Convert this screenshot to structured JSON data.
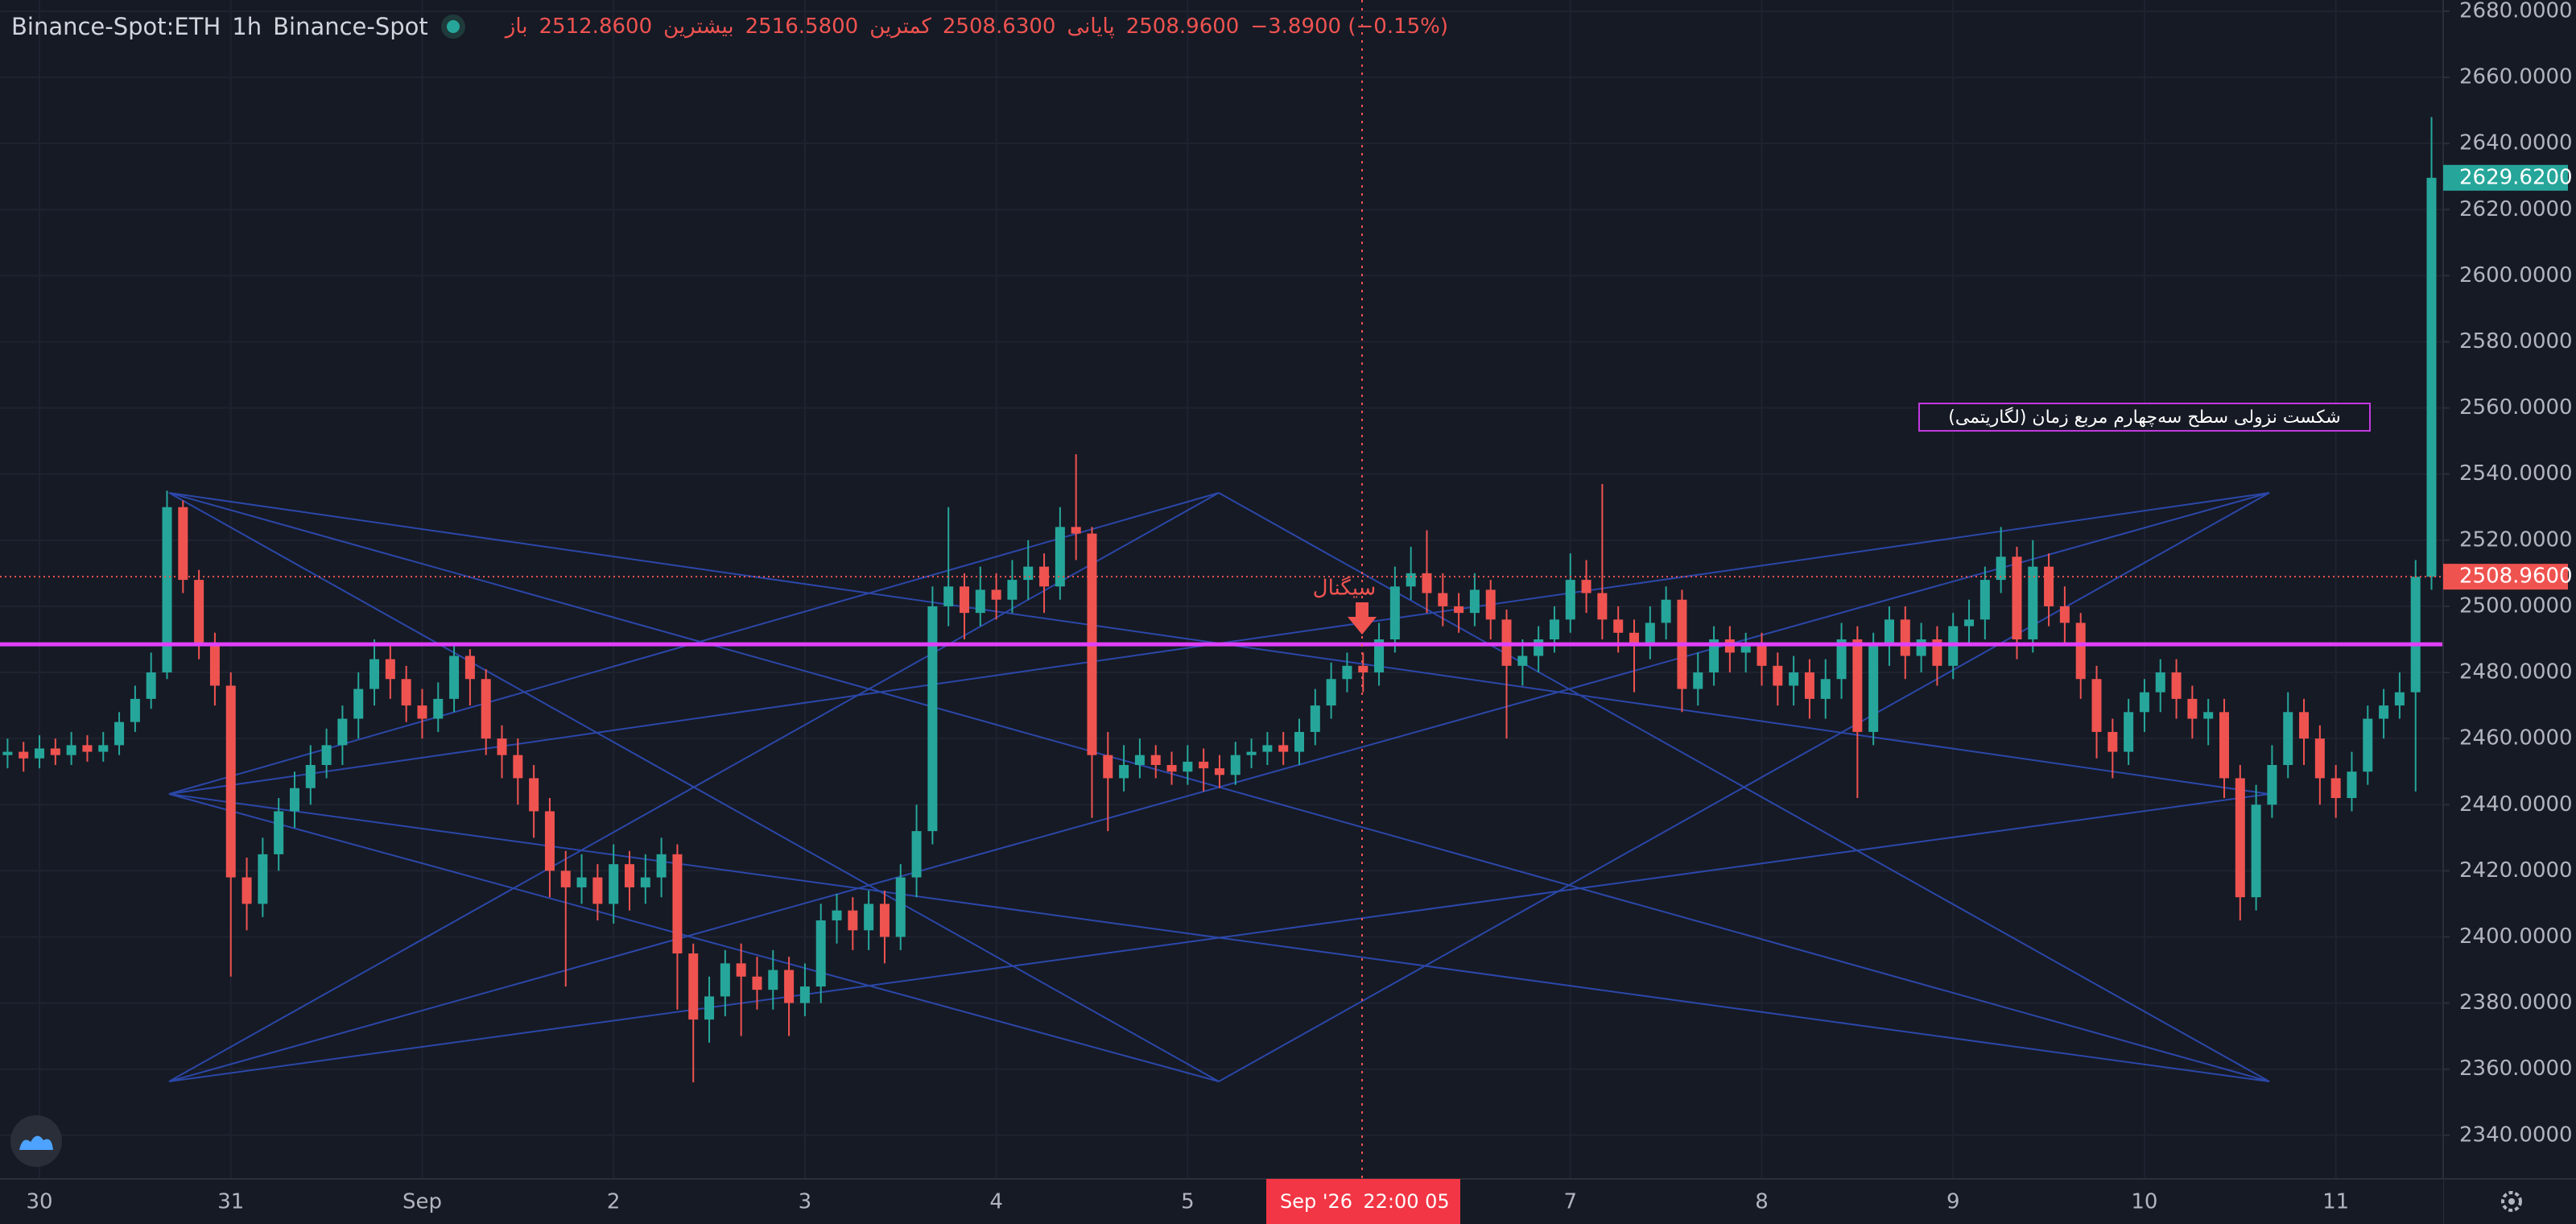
{
  "chart_data": {
    "type": "candlestick",
    "title": "Binance-Spot:ETH",
    "interval": "1h",
    "exchange": "Binance-Spot",
    "legend": [
      {
        "label": "باز",
        "value": "2512.8600"
      },
      {
        "label": "بیشترین",
        "value": "2516.5800"
      },
      {
        "label": "کمترین",
        "value": "2508.6300"
      },
      {
        "label": "پایانی",
        "value": "2508.9600"
      }
    ],
    "change": "−3.8900 (−0.15%)",
    "categories": [
      null,
      null,
      "30",
      null,
      null,
      null,
      null,
      null,
      null,
      null,
      null,
      null,
      null,
      null,
      "31",
      null,
      null,
      null,
      null,
      null,
      null,
      null,
      null,
      null,
      null,
      null,
      "Sep",
      null,
      null,
      null,
      null,
      null,
      null,
      null,
      null,
      null,
      null,
      null,
      "2",
      null,
      null,
      null,
      null,
      null,
      null,
      null,
      null,
      null,
      null,
      null,
      "3",
      null,
      null,
      null,
      null,
      null,
      null,
      null,
      null,
      null,
      null,
      null,
      "4",
      null,
      null,
      null,
      null,
      null,
      null,
      null,
      null,
      null,
      null,
      null,
      "5",
      null,
      null,
      null,
      null,
      null,
      null,
      null,
      null,
      null,
      null,
      null,
      null,
      null,
      null,
      null,
      null,
      null,
      null,
      null,
      null,
      null,
      null,
      null,
      "7",
      null,
      null,
      null,
      null,
      null,
      null,
      null,
      null,
      null,
      null,
      null,
      "8",
      null,
      null,
      null,
      null,
      null,
      null,
      null,
      null,
      null,
      null,
      null,
      "9",
      null,
      null,
      null,
      null,
      null,
      null,
      null,
      null,
      null,
      null,
      null,
      "10",
      null,
      null,
      null,
      null,
      null,
      null,
      null,
      null,
      null,
      null,
      null,
      "11",
      null,
      null,
      null,
      null,
      null,
      null
    ],
    "open": [
      2455,
      2456,
      2454,
      2457,
      2455,
      2458,
      2456,
      2458,
      2465,
      2472,
      2480,
      2530,
      2508,
      2488,
      2476,
      2418,
      2410,
      2425,
      2438,
      2445,
      2452,
      2458,
      2466,
      2475,
      2484,
      2478,
      2470,
      2466,
      2472,
      2485,
      2478,
      2460,
      2455,
      2448,
      2438,
      2420,
      2415,
      2418,
      2410,
      2422,
      2415,
      2418,
      2425,
      2395,
      2375,
      2382,
      2392,
      2388,
      2384,
      2390,
      2380,
      2385,
      2405,
      2408,
      2402,
      2410,
      2400,
      2418,
      2432,
      2500,
      2506,
      2498,
      2505,
      2502,
      2508,
      2512,
      2506,
      2524,
      2522,
      2455,
      2448,
      2452,
      2455,
      2452,
      2450,
      2453,
      2451,
      2449,
      2455,
      2456,
      2458,
      2456,
      2462,
      2470,
      2478,
      2482,
      2480,
      2490,
      2506,
      2510,
      2504,
      2500,
      2498,
      2505,
      2496,
      2482,
      2485,
      2490,
      2496,
      2508,
      2504,
      2496,
      2492,
      2488,
      2495,
      2502,
      2475,
      2480,
      2490,
      2486,
      2488,
      2482,
      2476,
      2480,
      2472,
      2478,
      2490,
      2462,
      2488,
      2496,
      2485,
      2490,
      2482,
      2494,
      2496,
      2508,
      2515,
      2490,
      2512,
      2500,
      2495,
      2478,
      2462,
      2456,
      2468,
      2474,
      2480,
      2472,
      2466,
      2468,
      2448,
      2412,
      2440,
      2452,
      2468,
      2460,
      2448,
      2442,
      2450,
      2466,
      2470,
      2474,
      2508.96
    ],
    "high": [
      2460,
      2459,
      2461,
      2460,
      2462,
      2461,
      2462,
      2468,
      2476,
      2486,
      2535,
      2532,
      2511,
      2492,
      2480,
      2424,
      2430,
      2442,
      2450,
      2458,
      2463,
      2470,
      2480,
      2490,
      2488,
      2482,
      2475,
      2477,
      2489,
      2487,
      2481,
      2464,
      2460,
      2452,
      2442,
      2426,
      2425,
      2422,
      2428,
      2426,
      2425,
      2430,
      2428,
      2398,
      2388,
      2396,
      2398,
      2394,
      2396,
      2394,
      2392,
      2410,
      2413,
      2412,
      2414,
      2414,
      2422,
      2440,
      2506,
      2530,
      2510,
      2512,
      2510,
      2514,
      2520,
      2516,
      2530,
      2546,
      2524,
      2462,
      2458,
      2460,
      2458,
      2456,
      2458,
      2457,
      2455,
      2459,
      2460,
      2462,
      2462,
      2466,
      2475,
      2483,
      2486,
      2486,
      2495,
      2512,
      2518,
      2523,
      2510,
      2504,
      2510,
      2508,
      2499,
      2490,
      2494,
      2500,
      2516,
      2514,
      2537,
      2500,
      2496,
      2500,
      2506,
      2505,
      2486,
      2494,
      2494,
      2492,
      2492,
      2486,
      2485,
      2484,
      2484,
      2495,
      2494,
      2492,
      2500,
      2500,
      2495,
      2494,
      2498,
      2502,
      2512,
      2524,
      2518,
      2520,
      2516,
      2506,
      2498,
      2482,
      2466,
      2472,
      2478,
      2484,
      2484,
      2476,
      2472,
      2472,
      2452,
      2446,
      2458,
      2474,
      2472,
      2464,
      2452,
      2456,
      2470,
      2475,
      2480,
      2514,
      2648
    ],
    "low": [
      2451,
      2450,
      2451,
      2452,
      2452,
      2453,
      2453,
      2455,
      2462,
      2469,
      2478,
      2504,
      2484,
      2470,
      2388,
      2402,
      2406,
      2420,
      2433,
      2440,
      2448,
      2452,
      2460,
      2470,
      2472,
      2465,
      2460,
      2462,
      2468,
      2470,
      2455,
      2448,
      2440,
      2430,
      2412,
      2385,
      2410,
      2405,
      2404,
      2408,
      2410,
      2412,
      2378,
      2356,
      2368,
      2376,
      2370,
      2378,
      2378,
      2370,
      2376,
      2380,
      2398,
      2396,
      2396,
      2392,
      2396,
      2412,
      2428,
      2494,
      2490,
      2494,
      2496,
      2498,
      2502,
      2498,
      2502,
      2514,
      2436,
      2432,
      2444,
      2448,
      2448,
      2446,
      2446,
      2444,
      2445,
      2446,
      2451,
      2452,
      2452,
      2452,
      2458,
      2466,
      2474,
      2474,
      2476,
      2486,
      2502,
      2498,
      2494,
      2492,
      2494,
      2490,
      2460,
      2476,
      2480,
      2486,
      2492,
      2498,
      2490,
      2486,
      2474,
      2484,
      2490,
      2468,
      2470,
      2476,
      2480,
      2480,
      2476,
      2470,
      2470,
      2466,
      2466,
      2472,
      2442,
      2458,
      2482,
      2478,
      2480,
      2476,
      2478,
      2488,
      2490,
      2504,
      2484,
      2486,
      2494,
      2488,
      2472,
      2454,
      2448,
      2452,
      2462,
      2468,
      2466,
      2460,
      2458,
      2442,
      2405,
      2408,
      2436,
      2448,
      2452,
      2440,
      2436,
      2438,
      2446,
      2460,
      2466,
      2444,
      2505
    ],
    "close": [
      2456,
      2454,
      2457,
      2455,
      2458,
      2456,
      2458,
      2465,
      2472,
      2480,
      2530,
      2508,
      2488,
      2476,
      2418,
      2410,
      2425,
      2438,
      2445,
      2452,
      2458,
      2466,
      2475,
      2484,
      2478,
      2470,
      2466,
      2472,
      2485,
      2478,
      2460,
      2455,
      2448,
      2438,
      2420,
      2415,
      2418,
      2410,
      2422,
      2415,
      2418,
      2425,
      2395,
      2375,
      2382,
      2392,
      2388,
      2384,
      2390,
      2380,
      2385,
      2405,
      2408,
      2402,
      2410,
      2400,
      2418,
      2432,
      2500,
      2506,
      2498,
      2505,
      2502,
      2508,
      2512,
      2506,
      2524,
      2522,
      2455,
      2448,
      2452,
      2455,
      2452,
      2450,
      2453,
      2451,
      2449,
      2455,
      2456,
      2458,
      2456,
      2462,
      2470,
      2478,
      2482,
      2480,
      2490,
      2506,
      2510,
      2504,
      2500,
      2498,
      2505,
      2496,
      2482,
      2485,
      2490,
      2496,
      2508,
      2504,
      2496,
      2492,
      2488,
      2495,
      2502,
      2475,
      2480,
      2490,
      2486,
      2488,
      2482,
      2476,
      2480,
      2472,
      2478,
      2490,
      2462,
      2488,
      2496,
      2485,
      2490,
      2482,
      2494,
      2496,
      2508,
      2515,
      2490,
      2512,
      2500,
      2495,
      2478,
      2462,
      2456,
      2468,
      2474,
      2480,
      2472,
      2466,
      2468,
      2448,
      2412,
      2440,
      2452,
      2468,
      2460,
      2448,
      2442,
      2450,
      2466,
      2470,
      2474,
      2508.96,
      2629.62
    ],
    "up_color": "#26a69a",
    "down_color": "#ef5350",
    "ylim": [
      2326.8,
      2683.4
    ],
    "yticks": [
      {
        "value": 2340,
        "label": "2340.0000"
      },
      {
        "value": 2360,
        "label": "2360.0000"
      },
      {
        "value": 2380,
        "label": "2380.0000"
      },
      {
        "value": 2400,
        "label": "2400.0000"
      },
      {
        "value": 2420,
        "label": "2420.0000"
      },
      {
        "value": 2440,
        "label": "2440.0000"
      },
      {
        "value": 2460,
        "label": "2460.0000"
      },
      {
        "value": 2480,
        "label": "2480.0000"
      },
      {
        "value": 2500,
        "label": "2500.0000"
      },
      {
        "value": 2520,
        "label": "2520.0000"
      },
      {
        "value": 2540,
        "label": "2540.0000"
      },
      {
        "value": 2560,
        "label": "2560.0000"
      },
      {
        "value": 2580,
        "label": "2580.0000"
      },
      {
        "value": 2600,
        "label": "2600.0000"
      },
      {
        "value": 2620,
        "label": "2620.0000"
      },
      {
        "value": 2640,
        "label": "2640.0000"
      },
      {
        "value": 2660,
        "label": "2660.0000"
      },
      {
        "value": 2680,
        "label": "2680.0000"
      }
    ],
    "grid": true,
    "hline": {
      "value": 2488.5,
      "color": "#e040fb"
    },
    "price_lines": [
      {
        "value": 2629.62,
        "label": "2629.6200",
        "color": "#26a69a"
      },
      {
        "value": 2508.96,
        "label": "2508.9600",
        "color": "#ef5350",
        "line": "dotted"
      }
    ],
    "annotations": [
      "شکست نزولی سطح سه‌چهارم مربع زمان (لگاریتمی)",
      "سیگنال"
    ],
    "crosshair_label": [
      "Sep '26",
      "22:00 05"
    ]
  }
}
